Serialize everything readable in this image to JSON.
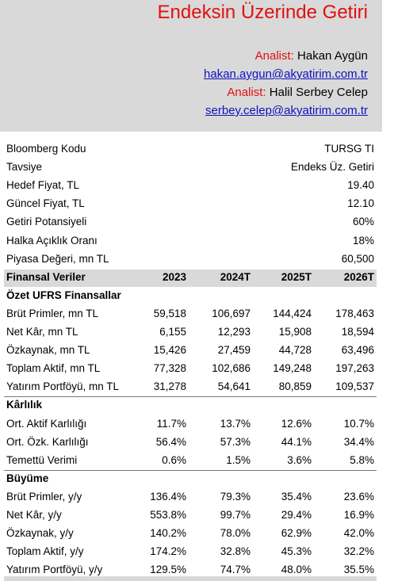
{
  "header": {
    "title": "Endeksin Üzerinde Getiri",
    "analysts": [
      {
        "label": "Analist:",
        "name": "Hakan Aygün",
        "email": "hakan.aygun@akyatirim.com.tr"
      },
      {
        "label": "Analist:",
        "name": "Halil Serbey Celep",
        "email": "serbey.celep@akyatirim.com.tr"
      }
    ]
  },
  "summary": {
    "rows": [
      [
        "Bloomberg Kodu",
        "TURSG TI"
      ],
      [
        "Tavsiye",
        "Endeks Üz. Getiri"
      ],
      [
        "Hedef Fiyat, TL",
        "19.40"
      ],
      [
        "Güncel Fiyat, TL",
        "12.10"
      ],
      [
        "Getiri Potansiyeli",
        "60%"
      ],
      [
        "Halka Açıklık Oranı",
        "18%"
      ],
      [
        "Piyasa Değeri, mn TL",
        "60,500"
      ]
    ]
  },
  "table": {
    "headers": [
      "Finansal Veriler",
      "2023",
      "2024T",
      "2025T",
      "2026T"
    ],
    "sections": [
      {
        "title": "Özet UFRS Finansallar",
        "rows": [
          [
            "Brüt Primler, mn TL",
            "59,518",
            "106,697",
            "144,424",
            "178,463"
          ],
          [
            "Net Kâr, mn TL",
            "6,155",
            "12,293",
            "15,908",
            "18,594"
          ],
          [
            "Özkaynak, mn TL",
            "15,426",
            "27,459",
            "44,728",
            "63,496"
          ],
          [
            "Toplam Aktif, mn TL",
            "77,328",
            "102,686",
            "149,248",
            "197,263"
          ],
          [
            "Yatırım Portföyü, mn TL",
            "31,278",
            "54,641",
            "80,859",
            "109,537"
          ]
        ]
      },
      {
        "title": "Kârlılık",
        "rows": [
          [
            "Ort. Aktif Karlılığı",
            "11.7%",
            "13.7%",
            "12.6%",
            "10.7%"
          ],
          [
            "Ort. Özk. Karlılığı",
            "56.4%",
            "57.3%",
            "44.1%",
            "34.4%"
          ],
          [
            "Temettü Verimi",
            "0.6%",
            "1.5%",
            "3.6%",
            "5.8%"
          ]
        ]
      },
      {
        "title": "Büyüme",
        "rows": [
          [
            "Brüt Primler, y/y",
            "136.4%",
            "79.3%",
            "35.4%",
            "23.6%"
          ],
          [
            "Net Kâr, y/y",
            "553.8%",
            "99.7%",
            "29.4%",
            "16.9%"
          ],
          [
            "Özkaynak, y/y",
            "140.2%",
            "78.0%",
            "62.9%",
            "42.0%"
          ],
          [
            "Toplam Aktif, y/y",
            "174.2%",
            "32.8%",
            "45.3%",
            "32.2%"
          ],
          [
            "Yatırım Portföyü, y/y",
            "129.5%",
            "74.7%",
            "48.0%",
            "35.5%"
          ]
        ]
      }
    ]
  }
}
